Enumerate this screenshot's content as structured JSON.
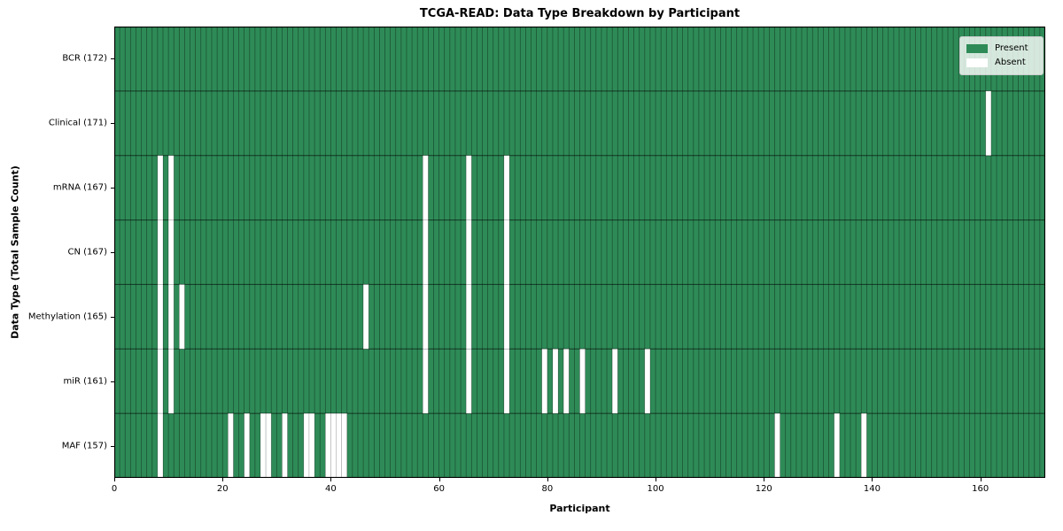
{
  "chart_data": {
    "type": "heatmap",
    "title": "TCGA-READ: Data Type Breakdown by Participant",
    "xlabel": "Participant",
    "ylabel": "Data Type (Total Sample Count)",
    "n_participants": 172,
    "x_ticks": [
      0,
      20,
      40,
      60,
      80,
      100,
      120,
      140,
      160
    ],
    "colors": {
      "present": "#2e8b57",
      "absent": "#ffffff"
    },
    "legend": [
      {
        "label": "Present",
        "color": "#2e8b57"
      },
      {
        "label": "Absent",
        "color": "#ffffff"
      }
    ],
    "legend_position": "upper right",
    "rows": [
      {
        "label": "BCR (172)",
        "name": "BCR",
        "total": 172,
        "absent_participants": []
      },
      {
        "label": "Clinical (171)",
        "name": "Clinical",
        "total": 171,
        "absent_participants": [
          161
        ]
      },
      {
        "label": "mRNA (167)",
        "name": "mRNA",
        "total": 167,
        "absent_participants": [
          8,
          10,
          57,
          65,
          72
        ]
      },
      {
        "label": "CN (167)",
        "name": "CN",
        "total": 167,
        "absent_participants": [
          8,
          10,
          57,
          65,
          72
        ]
      },
      {
        "label": "Methylation (165)",
        "name": "Methylation",
        "total": 165,
        "absent_participants": [
          8,
          10,
          12,
          46,
          57,
          65,
          72
        ]
      },
      {
        "label": "miR (161)",
        "name": "miR",
        "total": 161,
        "absent_participants": [
          8,
          10,
          57,
          65,
          72,
          79,
          81,
          83,
          86,
          92,
          98
        ]
      },
      {
        "label": "MAF (157)",
        "name": "MAF",
        "total": 157,
        "absent_participants": [
          8,
          21,
          24,
          27,
          28,
          31,
          35,
          36,
          39,
          40,
          41,
          42,
          122,
          133,
          138
        ]
      }
    ]
  }
}
